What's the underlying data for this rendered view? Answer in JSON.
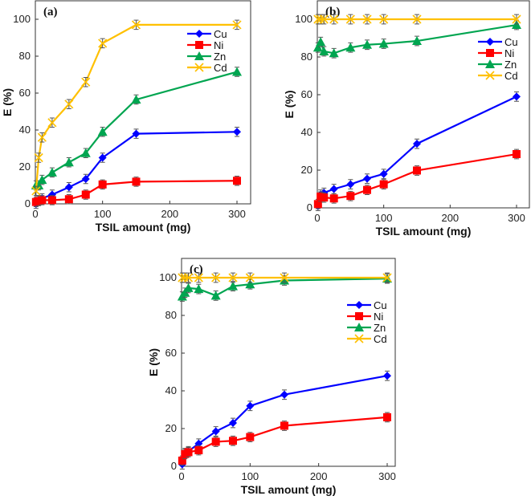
{
  "chart_data": [
    {
      "type": "line",
      "panel_label": "(a)",
      "xlabel": "TSIL amount (mg)",
      "ylabel": "E (%)",
      "xlim": [
        0,
        320
      ],
      "ylim": [
        0,
        110
      ],
      "xticks": [
        0,
        100,
        200,
        300
      ],
      "yticks": [
        0,
        20,
        40,
        60,
        80,
        100
      ],
      "legend_position": "top-right",
      "error": 2.5,
      "x": [
        1,
        5,
        10,
        25,
        50,
        75,
        100,
        150,
        300
      ],
      "series": [
        {
          "name": "Cu",
          "color": "#0000ff",
          "marker": "diamond",
          "values": [
            0,
            2,
            3,
            5,
            9,
            13.5,
            25,
            38,
            39
          ]
        },
        {
          "name": "Ni",
          "color": "#ff0000",
          "marker": "square",
          "values": [
            1,
            1.5,
            2,
            2,
            2.5,
            5,
            10.5,
            12,
            12.5
          ]
        },
        {
          "name": "Zn",
          "color": "#00a550",
          "marker": "triangle",
          "values": [
            10,
            10,
            13,
            17,
            22.5,
            27.5,
            39,
            56.5,
            71.5
          ]
        },
        {
          "name": "Cd",
          "color": "#ffc000",
          "marker": "x",
          "values": [
            7,
            25,
            36,
            44,
            54,
            66,
            87,
            97,
            97
          ]
        }
      ]
    },
    {
      "type": "line",
      "panel_label": "(b)",
      "xlabel": "TSIL amount (mg)",
      "ylabel": "E (%)",
      "xlim": [
        0,
        320
      ],
      "ylim": [
        0,
        110
      ],
      "xticks": [
        0,
        100,
        200,
        300
      ],
      "yticks": [
        0,
        20,
        40,
        60,
        80,
        100
      ],
      "legend_position": "top-right",
      "error": 2.5,
      "x": [
        1,
        5,
        10,
        25,
        50,
        75,
        100,
        150,
        300
      ],
      "series": [
        {
          "name": "Cu",
          "color": "#0000ff",
          "marker": "diamond",
          "values": [
            1,
            7,
            8,
            10,
            12.5,
            15.5,
            18,
            34,
            59
          ]
        },
        {
          "name": "Ni",
          "color": "#ff0000",
          "marker": "square",
          "values": [
            2,
            6,
            5.5,
            5,
            6.3,
            9.5,
            12.5,
            19.8,
            28.5
          ]
        },
        {
          "name": "Zn",
          "color": "#00a550",
          "marker": "triangle",
          "values": [
            85,
            88,
            83,
            82,
            85,
            86.5,
            87,
            88.5,
            97
          ]
        },
        {
          "name": "Cd",
          "color": "#ffc000",
          "marker": "x",
          "values": [
            100,
            100,
            100,
            100,
            100,
            100,
            100,
            100,
            100
          ]
        }
      ]
    },
    {
      "type": "line",
      "panel_label": "(c)",
      "xlabel": "TSIL amount (mg)",
      "ylabel": "E (%)",
      "xlim": [
        0,
        320
      ],
      "ylim": [
        0,
        110
      ],
      "xticks": [
        0,
        100,
        200,
        300
      ],
      "yticks": [
        0,
        20,
        40,
        60,
        80,
        100
      ],
      "legend_position": "right",
      "error": 2.5,
      "x": [
        1,
        5,
        10,
        25,
        50,
        75,
        100,
        150,
        300
      ],
      "series": [
        {
          "name": "Cu",
          "color": "#0000ff",
          "marker": "diamond",
          "values": [
            1,
            7,
            8,
            12,
            18.5,
            23,
            32,
            38,
            48
          ]
        },
        {
          "name": "Ni",
          "color": "#ff0000",
          "marker": "square",
          "values": [
            3,
            6.5,
            7.5,
            8.5,
            13,
            13.5,
            15.5,
            21.5,
            26
          ]
        },
        {
          "name": "Zn",
          "color": "#00a550",
          "marker": "triangle",
          "values": [
            90,
            92,
            94.5,
            94,
            90.5,
            95.5,
            96.5,
            98.5,
            99.5
          ]
        },
        {
          "name": "Cd",
          "color": "#ffc000",
          "marker": "x",
          "values": [
            100,
            100,
            100,
            100,
            100,
            100,
            100,
            100,
            100
          ]
        }
      ]
    }
  ]
}
